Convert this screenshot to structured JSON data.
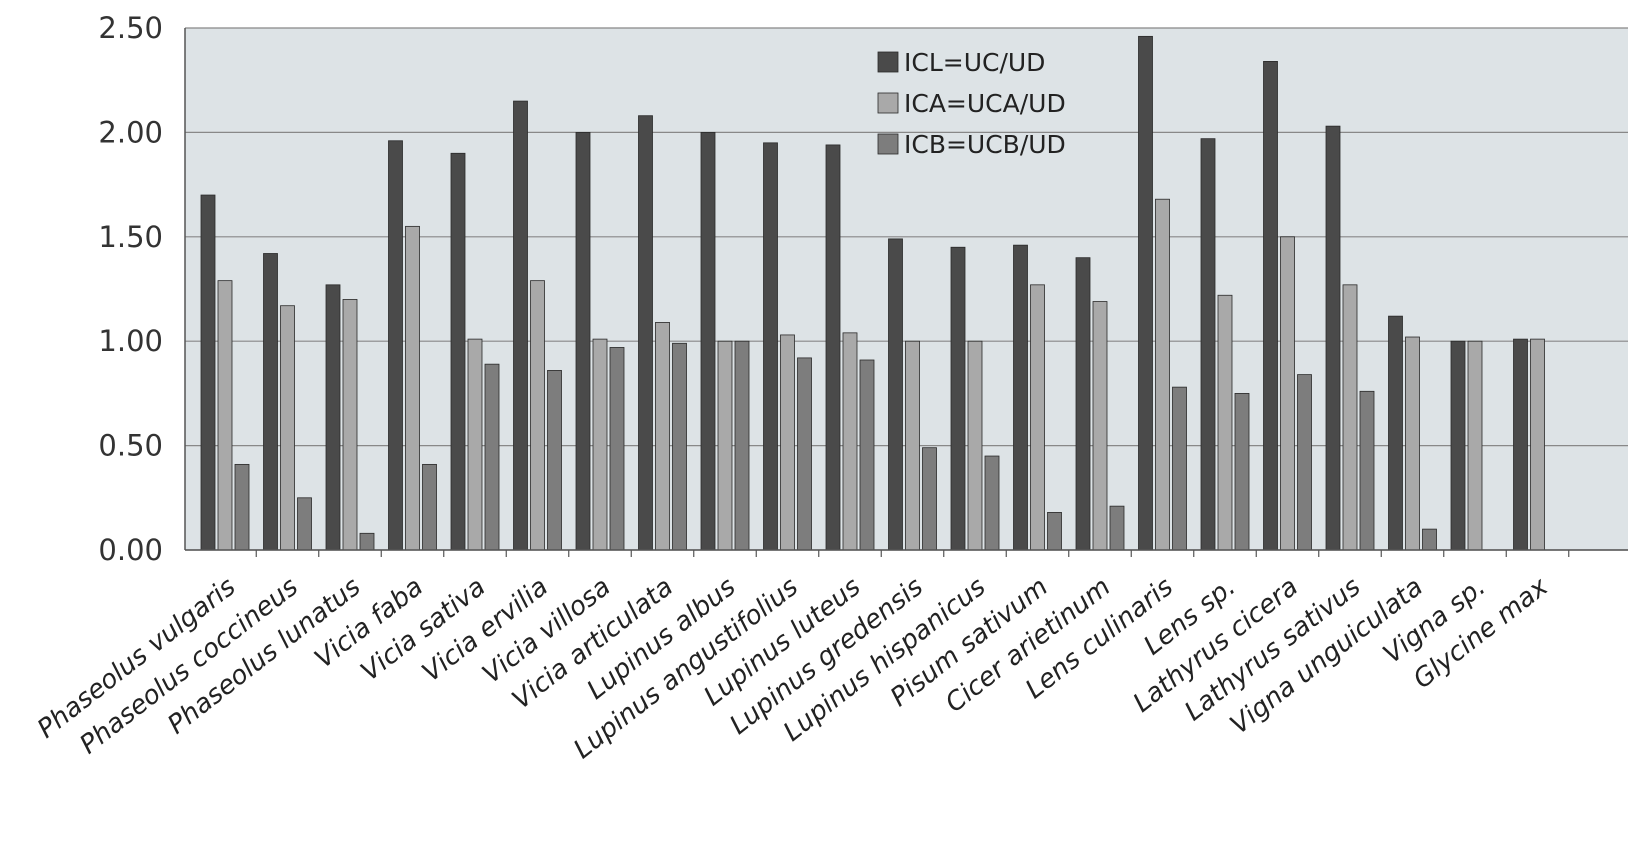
{
  "chart_data": {
    "type": "bar",
    "title": "",
    "xlabel": "",
    "ylabel": "",
    "ylim": [
      0,
      2.5
    ],
    "yticks": [
      "0.00",
      "0.50",
      "1.00",
      "1.50",
      "2.00",
      "2.50"
    ],
    "grid": true,
    "legend_position": "top-center",
    "categories": [
      "Phaseolus vulgaris",
      "Phaseolus coccineus",
      "Phaseolus lunatus",
      "Vicia faba",
      "Vicia sativa",
      "Vicia ervilia",
      "Vicia villosa",
      "Vicia articulata",
      "Lupinus  albus",
      "Lupinus  angustifolius",
      "Lupinus  luteus",
      "Lupinus gredensis",
      "Lupinus  hispanicus",
      "Pisum sativum",
      "Cicer arietinum",
      "Lens culinaris",
      "Lens sp.",
      "Lathyrus cicera",
      "Lathyrus sativus",
      "Vigna unguiculata",
      "Vigna sp.",
      "Glycine max"
    ],
    "series": [
      {
        "name": "ICL=UC/UD",
        "color": "#4a4a4a",
        "values": [
          1.7,
          1.42,
          1.27,
          1.96,
          1.9,
          2.15,
          2.0,
          2.08,
          2.0,
          1.95,
          1.94,
          1.49,
          1.45,
          1.46,
          1.4,
          2.46,
          1.97,
          2.34,
          2.03,
          1.12,
          1.0,
          1.01
        ]
      },
      {
        "name": "ICA=UCA/UD",
        "color": "#a9a9a9",
        "values": [
          1.29,
          1.17,
          1.2,
          1.55,
          1.01,
          1.29,
          1.01,
          1.09,
          1.0,
          1.03,
          1.04,
          1.0,
          1.0,
          1.27,
          1.19,
          1.68,
          1.22,
          1.5,
          1.27,
          1.02,
          1.0,
          1.01
        ]
      },
      {
        "name": "ICB=UCB/UD",
        "color": "#7d7d7d",
        "values": [
          0.41,
          0.25,
          0.08,
          0.41,
          0.89,
          0.86,
          0.97,
          0.99,
          1.0,
          0.92,
          0.91,
          0.49,
          0.45,
          0.18,
          0.21,
          0.78,
          0.75,
          0.84,
          0.76,
          0.1,
          null,
          null
        ]
      }
    ]
  },
  "colors": {
    "plot_background": "#dde3e6",
    "grid": "#888888",
    "axis": "#555555"
  }
}
